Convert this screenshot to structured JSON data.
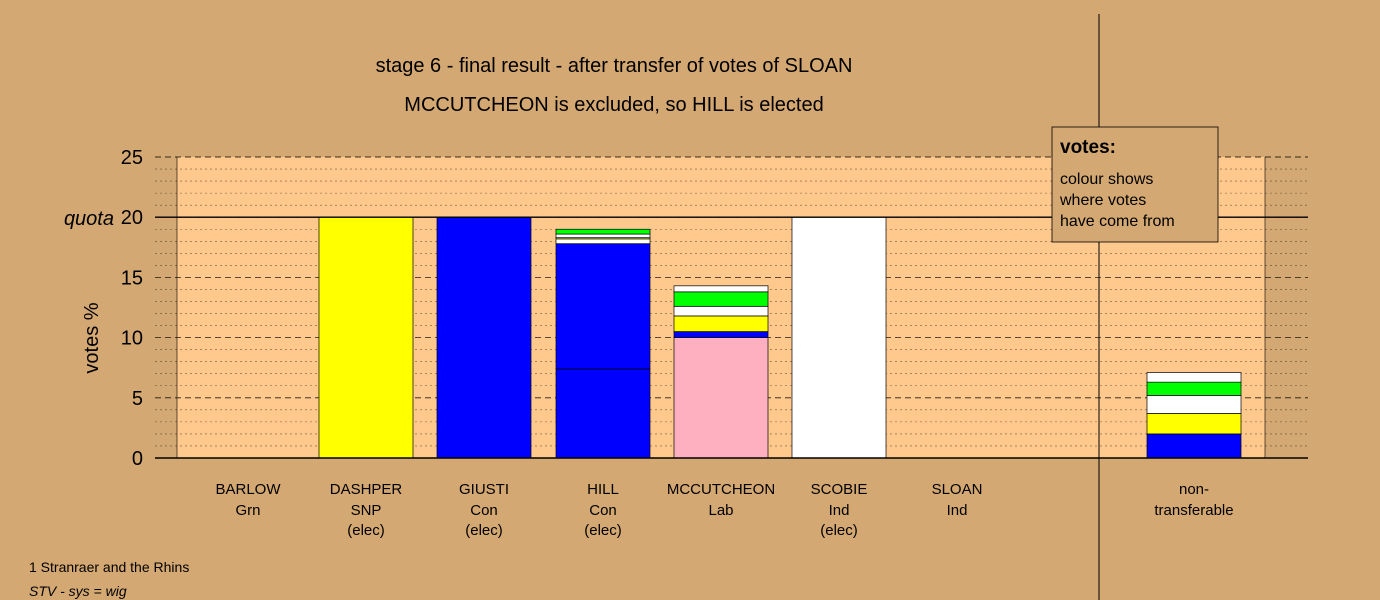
{
  "title_line1": "stage 6 - final result - after transfer of votes of SLOAN",
  "title_line2": "MCCUTCHEON is excluded, so HILL is elected",
  "footnote1": "1 Stranraer and the Rhins",
  "footnote2": "STV - sys = wig",
  "legend": {
    "title": "votes:",
    "lines": [
      "colour shows",
      "where votes",
      "have come from"
    ]
  },
  "colors": {
    "background": "#d4a872",
    "plot_area": "#ffc88c",
    "legend_box": "#d4a872",
    "Con": "#0000ff",
    "SNP": "#ffff00",
    "Grn": "#00ff00",
    "Ind": "#ffffff",
    "Lab": "#ffb0c0"
  },
  "chart_data": {
    "type": "bar",
    "stacked": true,
    "ylabel": "votes %",
    "ylim": [
      0,
      25
    ],
    "yticks": [
      "0",
      "5",
      "10",
      "15",
      "20",
      "25"
    ],
    "quota": 20,
    "quota_label": "quota",
    "grid": "dashed",
    "legend_position": "top-right",
    "candidates": [
      {
        "name": "BARLOW",
        "party": "Grn",
        "status": "",
        "segments": []
      },
      {
        "name": "DASHPER",
        "party": "SNP",
        "status": "(elec)",
        "segments": [
          {
            "from": "SNP",
            "value": 20.0
          }
        ]
      },
      {
        "name": "GIUSTI",
        "party": "Con",
        "status": "(elec)",
        "segments": [
          {
            "from": "Con",
            "value": 20.0
          }
        ]
      },
      {
        "name": "HILL",
        "party": "Con",
        "status": "(elec)",
        "segments": [
          {
            "from": "Con",
            "value": 7.4
          },
          {
            "from": "Con",
            "value": 10.4
          },
          {
            "from": "Ind",
            "value": 0.4
          },
          {
            "from": "SNP",
            "value": 0.1
          },
          {
            "from": "Ind",
            "value": 0.3
          },
          {
            "from": "Grn",
            "value": 0.4
          }
        ]
      },
      {
        "name": "MCCUTCHEON",
        "party": "Lab",
        "status": "",
        "segments": [
          {
            "from": "Lab",
            "value": 10.0
          },
          {
            "from": "Con",
            "value": 0.5
          },
          {
            "from": "SNP",
            "value": 1.3
          },
          {
            "from": "Ind",
            "value": 0.8
          },
          {
            "from": "Grn",
            "value": 1.2
          },
          {
            "from": "Ind",
            "value": 0.5
          }
        ]
      },
      {
        "name": "SCOBIE",
        "party": "Ind",
        "status": "(elec)",
        "segments": [
          {
            "from": "Ind",
            "value": 20.0
          }
        ]
      },
      {
        "name": "SLOAN",
        "party": "Ind",
        "status": "",
        "segments": []
      }
    ],
    "nontransferable": {
      "label1": "non-",
      "label2": "transferable",
      "segments": [
        {
          "from": "Con",
          "value": 2.0
        },
        {
          "from": "SNP",
          "value": 1.7
        },
        {
          "from": "Ind",
          "value": 1.5
        },
        {
          "from": "Grn",
          "value": 1.1
        },
        {
          "from": "Ind",
          "value": 0.8
        }
      ]
    }
  }
}
